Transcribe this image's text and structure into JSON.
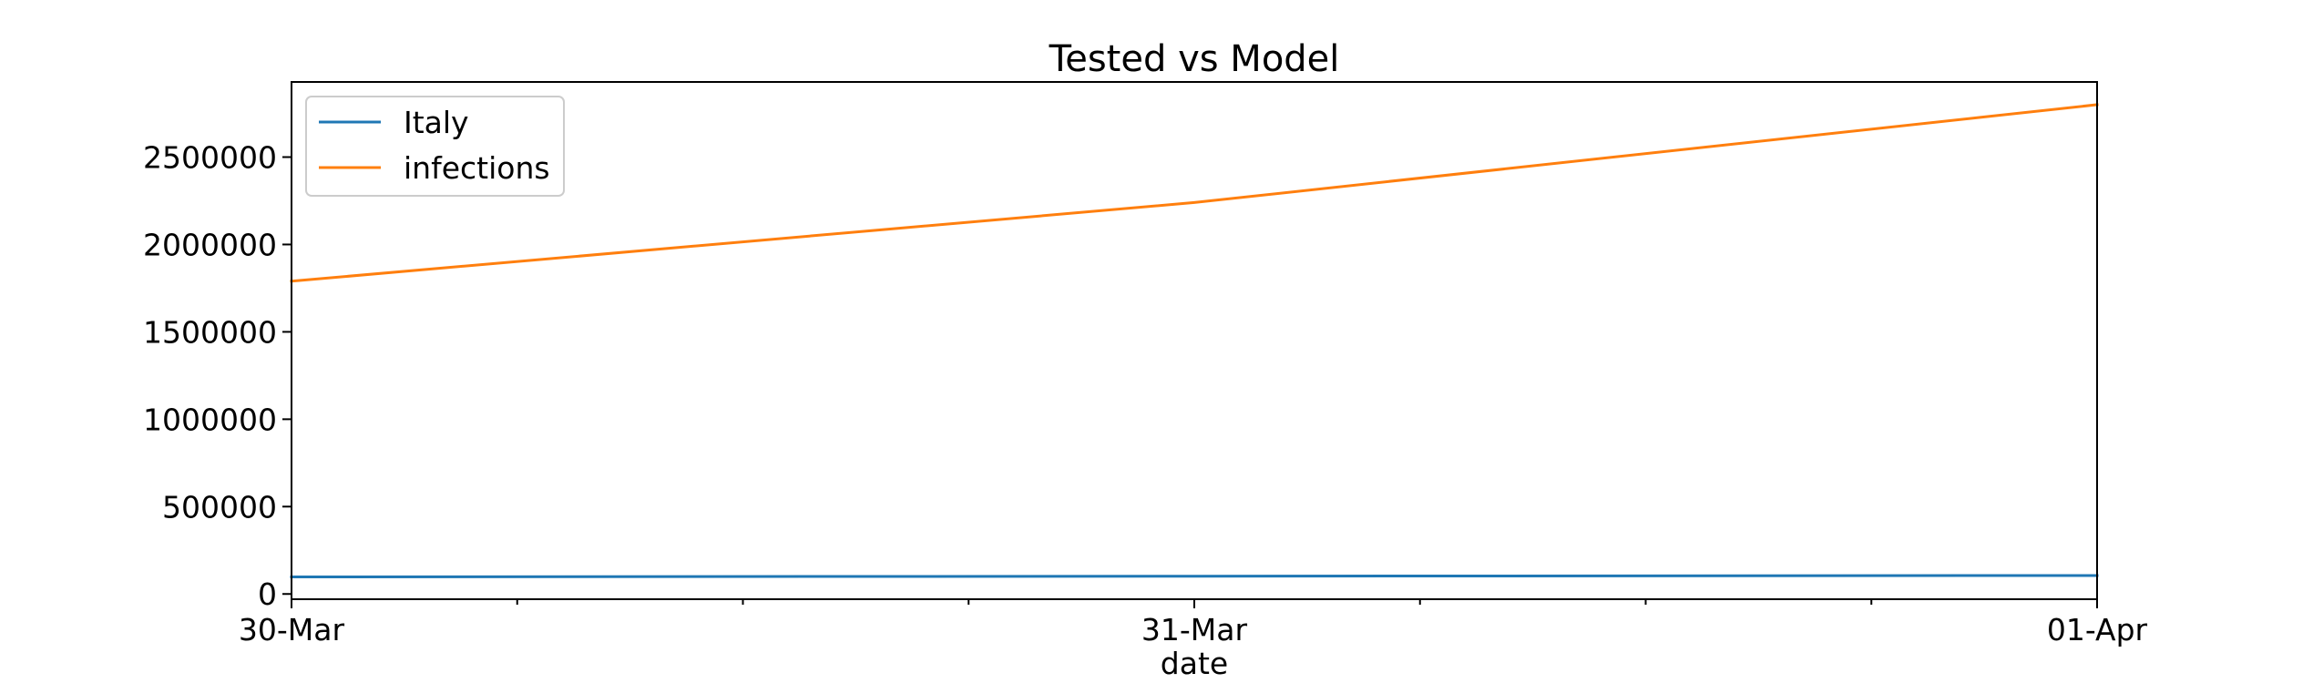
{
  "chart_data": {
    "type": "line",
    "title": "Tested vs Model",
    "xlabel": "date",
    "ylabel": "",
    "x": [
      "30-Mar",
      "31-Mar",
      "01-Apr"
    ],
    "xlim": [
      "30-Mar",
      "01-Apr"
    ],
    "ylim": [
      -30000,
      2930000
    ],
    "y_ticks": [
      0,
      500000,
      1000000,
      1500000,
      2000000,
      2500000
    ],
    "x_ticks": [
      "30-Mar",
      "31-Mar",
      "01-Apr"
    ],
    "x_minor_ticks_per_interval": 3,
    "grid": false,
    "legend_position": "top-left",
    "series": [
      {
        "name": "Italy",
        "color": "#1f77b4",
        "values": [
          97689,
          101739,
          105792
        ]
      },
      {
        "name": "infections",
        "color": "#ff7f0e",
        "values": [
          1790000,
          2240000,
          2800000
        ]
      }
    ]
  }
}
